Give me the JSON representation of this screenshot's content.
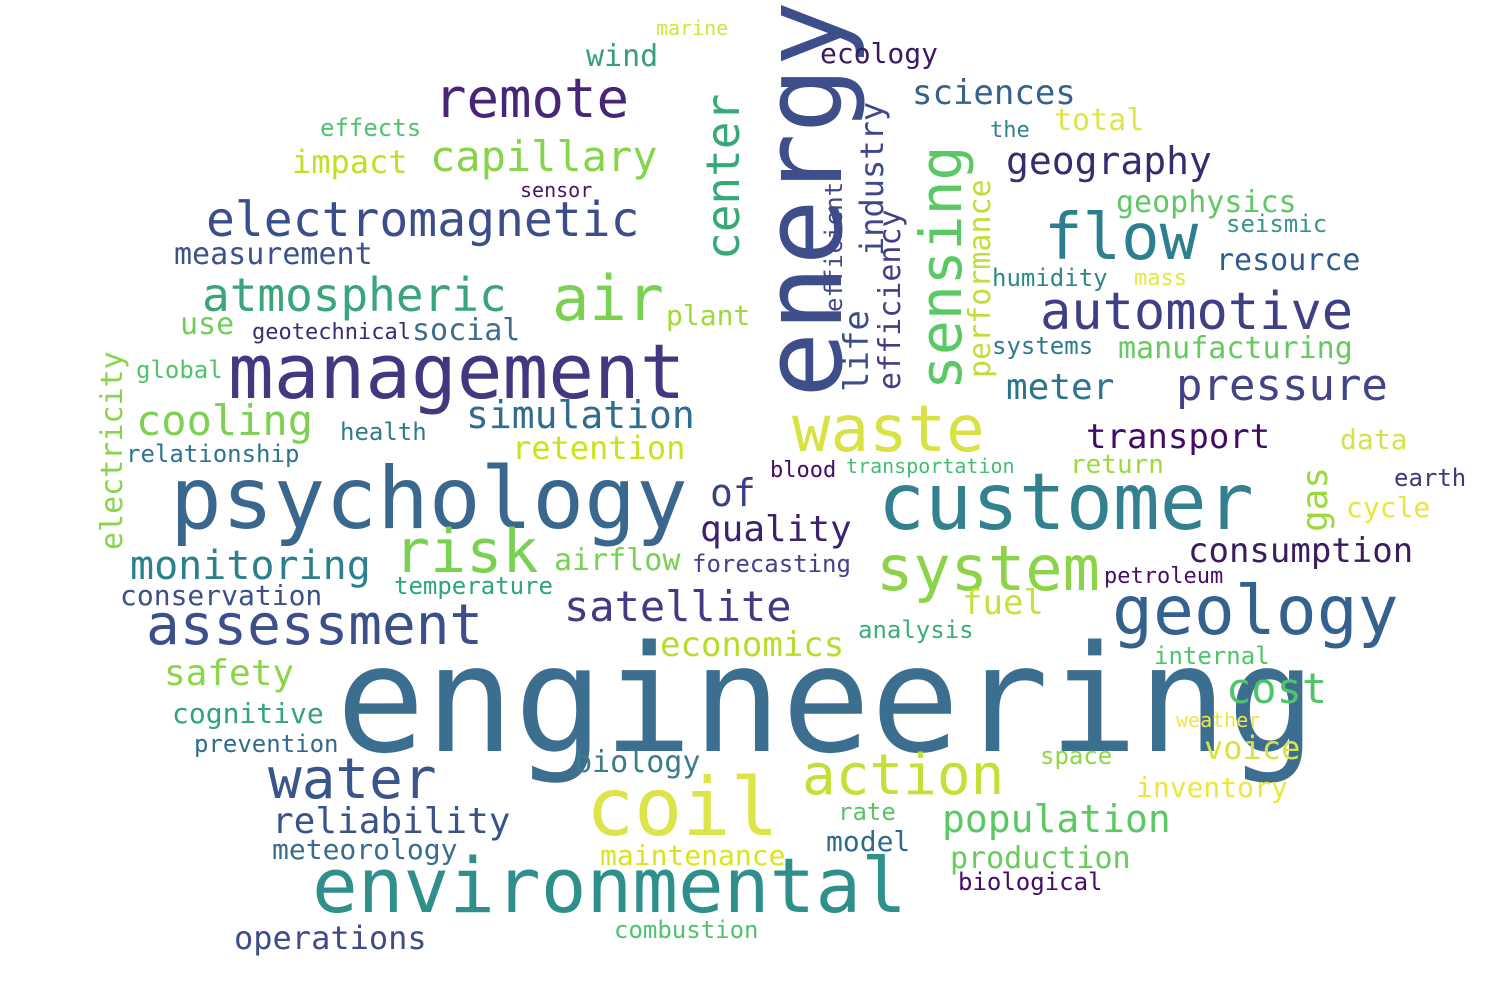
{
  "words": [
    {
      "text": "engineering",
      "color": "#3b6e8f"
    },
    {
      "text": "energy",
      "color": "#3d4e8a"
    },
    {
      "text": "psychology",
      "color": "#39678e"
    },
    {
      "text": "customer",
      "color": "#33808e"
    },
    {
      "text": "management",
      "color": "#433880"
    },
    {
      "text": "environmental",
      "color": "#2f8f8a"
    },
    {
      "text": "coil",
      "color": "#dde44a"
    },
    {
      "text": "waste",
      "color": "#d8e243"
    },
    {
      "text": "geology",
      "color": "#34618d"
    },
    {
      "text": "system",
      "color": "#8dd349"
    },
    {
      "text": "sensing",
      "color": "#5ac864"
    },
    {
      "text": "flow",
      "color": "#2d7e8e"
    },
    {
      "text": "air",
      "color": "#7ad151"
    },
    {
      "text": "risk",
      "color": "#79d152"
    },
    {
      "text": "action",
      "color": "#c4df38"
    },
    {
      "text": "water",
      "color": "#3a548c"
    },
    {
      "text": "assessment",
      "color": "#3c4f8a"
    },
    {
      "text": "remote",
      "color": "#482576"
    },
    {
      "text": "automotive",
      "color": "#3e3f86"
    },
    {
      "text": "center",
      "color": "#37a877"
    },
    {
      "text": "electromagnetic",
      "color": "#3b4e8b"
    },
    {
      "text": "atmospheric",
      "color": "#38a57a"
    },
    {
      "text": "capillary",
      "color": "#86d449"
    },
    {
      "text": "pressure",
      "color": "#414487"
    },
    {
      "text": "geography",
      "color": "#3a2a70"
    },
    {
      "text": "satellite",
      "color": "#433a82"
    },
    {
      "text": "simulation",
      "color": "#2f6c8e"
    },
    {
      "text": "monitoring",
      "color": "#2b7f8e"
    },
    {
      "text": "cooling",
      "color": "#7cd150"
    },
    {
      "text": "cost",
      "color": "#50c46a"
    },
    {
      "text": "population",
      "color": "#5cc863"
    },
    {
      "text": "reliability",
      "color": "#3a538b"
    },
    {
      "text": "consumption",
      "color": "#3b1c5e"
    },
    {
      "text": "transport",
      "color": "#440a68"
    },
    {
      "text": "quality",
      "color": "#3e2070"
    },
    {
      "text": "meter",
      "color": "#2c758e"
    },
    {
      "text": "industry",
      "color": "#3f4889"
    },
    {
      "text": "gas",
      "color": "#9bd93c"
    },
    {
      "text": "sciences",
      "color": "#34628d"
    },
    {
      "text": "of",
      "color": "#3b3f88"
    },
    {
      "text": "performance",
      "color": "#bfdf38"
    },
    {
      "text": "economics",
      "color": "#b5de2b"
    },
    {
      "text": "safety",
      "color": "#8bd646"
    },
    {
      "text": "voice",
      "color": "#d9e241"
    },
    {
      "text": "production",
      "color": "#67cc5c"
    },
    {
      "text": "operations",
      "color": "#3e4c8a"
    },
    {
      "text": "fuel",
      "color": "#c7e13a"
    },
    {
      "text": "efficiency",
      "color": "#433d84"
    },
    {
      "text": "retention",
      "color": "#cde11d"
    },
    {
      "text": "electricity",
      "color": "#87d549"
    },
    {
      "text": "measurement",
      "color": "#3b528b"
    },
    {
      "text": "life",
      "color": "#3c4e8a"
    },
    {
      "text": "social",
      "color": "#3d6d8f"
    },
    {
      "text": "impact",
      "color": "#c0df25"
    },
    {
      "text": "maintenance",
      "color": "#dde318"
    },
    {
      "text": "biology",
      "color": "#3b7d8d"
    },
    {
      "text": "cognitive",
      "color": "#32a37f"
    },
    {
      "text": "geophysics",
      "color": "#5ec962"
    },
    {
      "text": "airflow",
      "color": "#78d152"
    },
    {
      "text": "manufacturing",
      "color": "#65cb5e"
    },
    {
      "text": "inventory",
      "color": "#eee63c"
    },
    {
      "text": "meteorology",
      "color": "#3a6c8e"
    },
    {
      "text": "conservation",
      "color": "#3b4f8a"
    },
    {
      "text": "wind",
      "color": "#36a07c"
    },
    {
      "text": "resource",
      "color": "#2f5b8d"
    },
    {
      "text": "total",
      "color": "#e1e34a"
    },
    {
      "text": "data",
      "color": "#d2e247"
    },
    {
      "text": "return",
      "color": "#9fd93a"
    },
    {
      "text": "ecology",
      "color": "#3c1961"
    },
    {
      "text": "model",
      "color": "#2f6a8e"
    },
    {
      "text": "efficient",
      "color": "#404688"
    },
    {
      "text": "use",
      "color": "#6fce58"
    },
    {
      "text": "plant",
      "color": "#a1da38"
    },
    {
      "text": "cycle",
      "color": "#e9e53e"
    },
    {
      "text": "health",
      "color": "#2f7b8e"
    },
    {
      "text": "relationship",
      "color": "#2f738e"
    },
    {
      "text": "forecasting",
      "color": "#404387"
    },
    {
      "text": "analysis",
      "color": "#3bad78"
    },
    {
      "text": "combustion",
      "color": "#4fc36b"
    },
    {
      "text": "effects",
      "color": "#4ec36b"
    },
    {
      "text": "earth",
      "color": "#3b3b79"
    },
    {
      "text": "internal",
      "color": "#4fc46a"
    },
    {
      "text": "biological",
      "color": "#450b6a"
    },
    {
      "text": "prevention",
      "color": "#2f6b8e"
    },
    {
      "text": "temperature",
      "color": "#2da57b"
    },
    {
      "text": "blood",
      "color": "#420b64"
    },
    {
      "text": "petroleum",
      "color": "#470d68"
    },
    {
      "text": "humidity",
      "color": "#2d878c"
    },
    {
      "text": "systems",
      "color": "#2d7a8e"
    },
    {
      "text": "seismic",
      "color": "#39958a"
    },
    {
      "text": "geotechnical",
      "color": "#3b2a71"
    },
    {
      "text": "global",
      "color": "#4fc46a"
    },
    {
      "text": "transportation",
      "color": "#43bc74"
    },
    {
      "text": "sensor",
      "color": "#471567"
    },
    {
      "text": "the",
      "color": "#33808e"
    },
    {
      "text": "rate",
      "color": "#57c566"
    },
    {
      "text": "space",
      "color": "#8fd645"
    },
    {
      "text": "weather",
      "color": "#f0e548"
    },
    {
      "text": "mass",
      "color": "#e6e63f"
    },
    {
      "text": "marine",
      "color": "#d2e342"
    }
  ]
}
